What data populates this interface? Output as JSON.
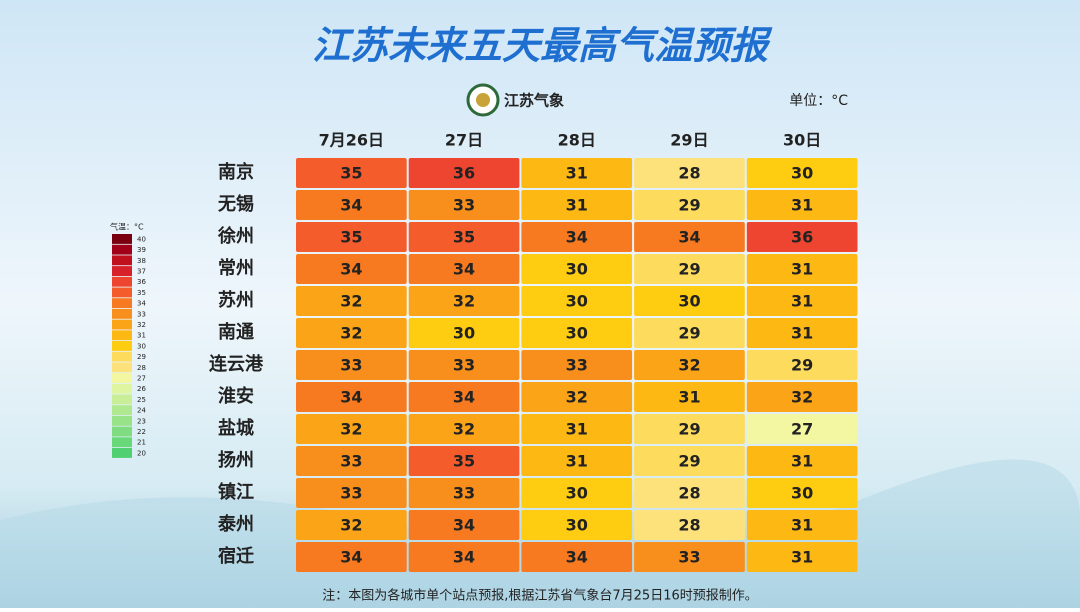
{
  "header": {
    "title": "江苏未来五天最高气温预报",
    "logo": "江苏气象",
    "unit": "单位：°C"
  },
  "legend": {
    "title": "气温：°C",
    "items": [
      {
        "value": 40,
        "color": "#7a0010"
      },
      {
        "value": 39,
        "color": "#a00018"
      },
      {
        "value": 38,
        "color": "#c0101e"
      },
      {
        "value": 37,
        "color": "#d8202a"
      },
      {
        "value": 36,
        "color": "#ee4530"
      },
      {
        "value": 35,
        "color": "#f45c2c"
      },
      {
        "value": 34,
        "color": "#f77a20"
      },
      {
        "value": 33,
        "color": "#f88f1c"
      },
      {
        "value": 32,
        "color": "#fba418"
      },
      {
        "value": 31,
        "color": "#fdb814"
      },
      {
        "value": 30,
        "color": "#fecc10"
      },
      {
        "value": 29,
        "color": "#fddb5c"
      },
      {
        "value": 28,
        "color": "#fde27c"
      },
      {
        "value": 27,
        "color": "#f3f7a2"
      },
      {
        "value": 26,
        "color": "#e0f5a0"
      },
      {
        "value": 25,
        "color": "#c8ef98"
      },
      {
        "value": 24,
        "color": "#b0e890"
      },
      {
        "value": 23,
        "color": "#98e288"
      },
      {
        "value": 22,
        "color": "#80dc80"
      },
      {
        "value": 21,
        "color": "#68d878"
      },
      {
        "value": 20,
        "color": "#50d070"
      }
    ]
  },
  "table": {
    "columns": [
      "7月26日",
      "27日",
      "28日",
      "29日",
      "30日"
    ],
    "rows": [
      {
        "city": "南京",
        "values": [
          35,
          36,
          31,
          28,
          30
        ]
      },
      {
        "city": "无锡",
        "values": [
          34,
          33,
          31,
          29,
          31
        ]
      },
      {
        "city": "徐州",
        "values": [
          35,
          35,
          34,
          34,
          36
        ]
      },
      {
        "city": "常州",
        "values": [
          34,
          34,
          30,
          29,
          31
        ]
      },
      {
        "city": "苏州",
        "values": [
          32,
          32,
          30,
          30,
          31
        ]
      },
      {
        "city": "南通",
        "values": [
          32,
          30,
          30,
          29,
          31
        ]
      },
      {
        "city": "连云港",
        "values": [
          33,
          33,
          33,
          32,
          29
        ]
      },
      {
        "city": "淮安",
        "values": [
          34,
          34,
          32,
          31,
          32
        ]
      },
      {
        "city": "盐城",
        "values": [
          32,
          32,
          31,
          29,
          27
        ]
      },
      {
        "city": "扬州",
        "values": [
          33,
          35,
          31,
          29,
          31
        ]
      },
      {
        "city": "镇江",
        "values": [
          33,
          33,
          30,
          28,
          30
        ]
      },
      {
        "city": "泰州",
        "values": [
          32,
          34,
          30,
          28,
          31
        ]
      },
      {
        "city": "宿迁",
        "values": [
          34,
          34,
          34,
          33,
          31
        ]
      }
    ]
  },
  "footer": {
    "note": "注：本图为各城市单个站点预报,根据江苏省气象台7月25日16时预报制作。"
  }
}
